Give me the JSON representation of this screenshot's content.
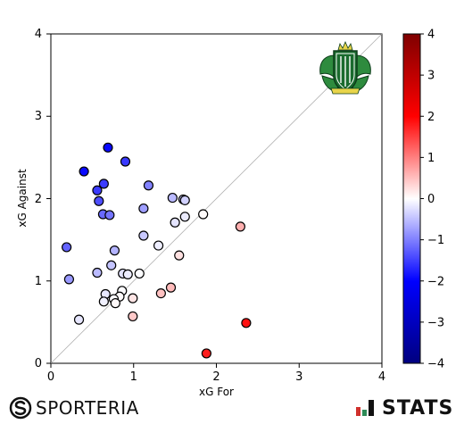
{
  "chart_data": {
    "type": "scatter",
    "title": "",
    "xlabel": "xG For",
    "ylabel": "xG Against",
    "xlim": [
      0,
      4
    ],
    "ylim": [
      0,
      4
    ],
    "x_ticks": [
      "0",
      "1",
      "2",
      "3",
      "4"
    ],
    "y_ticks": [
      "0",
      "1",
      "2",
      "3",
      "4"
    ],
    "reference_line": "y = x",
    "color_encoding": "xG For minus xG Against",
    "colorbar": {
      "range": [
        -4,
        4
      ],
      "ticks": [
        "4",
        "3",
        "2",
        "1",
        "0",
        "−1",
        "−2",
        "−3",
        "−4"
      ],
      "colors": [
        "#7f0000",
        "#ff0000",
        "#ffffff",
        "#0000ff",
        "#00007f"
      ]
    },
    "points": [
      {
        "x": 0.69,
        "y": 2.62
      },
      {
        "x": 0.9,
        "y": 2.45
      },
      {
        "x": 0.4,
        "y": 2.33
      },
      {
        "x": 0.64,
        "y": 2.18
      },
      {
        "x": 0.56,
        "y": 2.1
      },
      {
        "x": 1.18,
        "y": 2.16
      },
      {
        "x": 0.58,
        "y": 1.97
      },
      {
        "x": 1.47,
        "y": 2.01
      },
      {
        "x": 1.6,
        "y": 1.99
      },
      {
        "x": 1.62,
        "y": 1.98
      },
      {
        "x": 1.12,
        "y": 1.88
      },
      {
        "x": 0.63,
        "y": 1.81
      },
      {
        "x": 0.71,
        "y": 1.8
      },
      {
        "x": 1.84,
        "y": 1.81
      },
      {
        "x": 1.62,
        "y": 1.78
      },
      {
        "x": 1.5,
        "y": 1.71
      },
      {
        "x": 2.29,
        "y": 1.66
      },
      {
        "x": 1.12,
        "y": 1.55
      },
      {
        "x": 1.3,
        "y": 1.43
      },
      {
        "x": 0.19,
        "y": 1.41
      },
      {
        "x": 0.77,
        "y": 1.37
      },
      {
        "x": 1.55,
        "y": 1.31
      },
      {
        "x": 0.73,
        "y": 1.19
      },
      {
        "x": 0.56,
        "y": 1.1
      },
      {
        "x": 0.87,
        "y": 1.09
      },
      {
        "x": 0.93,
        "y": 1.08
      },
      {
        "x": 1.07,
        "y": 1.09
      },
      {
        "x": 0.22,
        "y": 1.02
      },
      {
        "x": 1.45,
        "y": 0.92
      },
      {
        "x": 0.86,
        "y": 0.88
      },
      {
        "x": 1.33,
        "y": 0.85
      },
      {
        "x": 0.66,
        "y": 0.84
      },
      {
        "x": 0.83,
        "y": 0.81
      },
      {
        "x": 0.99,
        "y": 0.79
      },
      {
        "x": 0.76,
        "y": 0.78
      },
      {
        "x": 0.64,
        "y": 0.75
      },
      {
        "x": 0.78,
        "y": 0.73
      },
      {
        "x": 0.99,
        "y": 0.57
      },
      {
        "x": 0.34,
        "y": 0.53
      },
      {
        "x": 2.36,
        "y": 0.49
      },
      {
        "x": 1.88,
        "y": 0.12
      }
    ],
    "point_style": {
      "edge": "#000000",
      "radius_px": 5
    }
  },
  "branding": {
    "left_logo": {
      "icon": "sporteria-s-icon",
      "text": "SPORTERIA"
    },
    "right_logo": {
      "icon": "stats-bars-icon",
      "text": "STATS"
    },
    "team_crest": {
      "icon": "team-crest-icon",
      "colors": [
        "#1a6b2e",
        "#0d3d1a",
        "#e8d44a",
        "#ffffff"
      ]
    }
  }
}
